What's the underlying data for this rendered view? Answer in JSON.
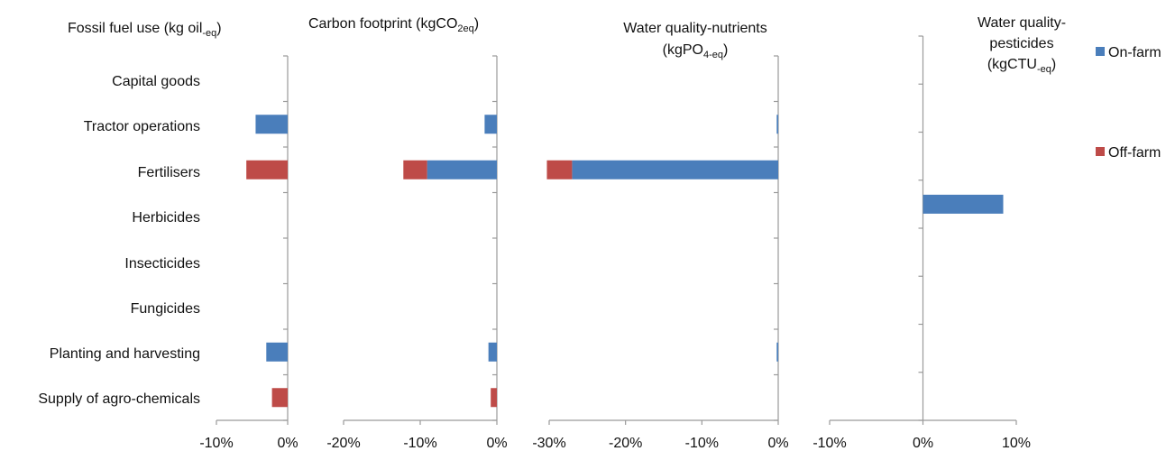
{
  "legend": {
    "position": "right",
    "items": [
      {
        "label": "On-farm",
        "color": "#4a7ebb"
      },
      {
        "label": "Off-farm",
        "color": "#be4b48"
      }
    ]
  },
  "categories": [
    "Capital goods",
    "Tractor operations",
    "Fertilisers",
    "Herbicides",
    "Insecticides",
    "Fungicides",
    "Planting and harvesting",
    "Supply of agro-chemicals"
  ],
  "chart_data": [
    {
      "type": "bar",
      "orientation": "horizontal",
      "stacked": true,
      "title": {
        "main": "Fossil fuel use (kg oil",
        "sub": "-eq",
        "tail": ")"
      },
      "xlim": [
        -10,
        0
      ],
      "ticks": [
        "-10%",
        "0%"
      ],
      "tick_values": [
        -10,
        0
      ],
      "series": [
        {
          "name": "On-farm",
          "values": [
            0,
            -4.5,
            0,
            0,
            0,
            0,
            -3.0,
            0
          ]
        },
        {
          "name": "Off-farm",
          "values": [
            0,
            0,
            -5.8,
            0,
            0,
            0,
            0,
            -2.2
          ]
        }
      ]
    },
    {
      "type": "bar",
      "orientation": "horizontal",
      "stacked": true,
      "title": {
        "main": "Carbon footprint (kgCO",
        "sub": "2eq",
        "tail": ")"
      },
      "xlim": [
        -20,
        0
      ],
      "ticks": [
        "-20%",
        "-10%",
        "0%"
      ],
      "tick_values": [
        -20,
        -10,
        0
      ],
      "series": [
        {
          "name": "On-farm",
          "values": [
            0,
            -1.6,
            -9.1,
            0,
            0,
            0,
            -1.1,
            0
          ]
        },
        {
          "name": "Off-farm",
          "values": [
            0,
            0,
            -3.1,
            0,
            0,
            0,
            0,
            -0.8
          ]
        }
      ]
    },
    {
      "type": "bar",
      "orientation": "horizontal",
      "stacked": true,
      "title": {
        "line1": "Water quality-nutrients",
        "main": "(kgPO",
        "sub": "4-eq",
        "tail": ")"
      },
      "xlim": [
        -30,
        0
      ],
      "ticks": [
        "-30%",
        "-20%",
        "-10%",
        "0%"
      ],
      "tick_values": [
        -30,
        -20,
        -10,
        0
      ],
      "series": [
        {
          "name": "On-farm",
          "values": [
            0,
            -0.2,
            -27.0,
            0,
            0,
            0,
            -0.2,
            0
          ]
        },
        {
          "name": "Off-farm",
          "values": [
            0,
            0,
            -3.3,
            0,
            0,
            0,
            0,
            0
          ]
        }
      ]
    },
    {
      "type": "bar",
      "orientation": "horizontal",
      "stacked": true,
      "title": {
        "line1": "Water quality-",
        "line2": "pesticides",
        "main": "(kgCTU",
        "sub": "-eq",
        "tail": ")"
      },
      "xlim": [
        -10,
        10
      ],
      "ticks": [
        "-10%",
        "0%",
        "10%"
      ],
      "tick_values": [
        -10,
        0,
        10
      ],
      "series": [
        {
          "name": "On-farm",
          "values": [
            0,
            0,
            0,
            8.6,
            0,
            0,
            0,
            0
          ]
        },
        {
          "name": "Off-farm",
          "values": [
            0,
            0,
            0,
            0,
            0,
            0,
            0,
            0
          ]
        }
      ]
    }
  ]
}
